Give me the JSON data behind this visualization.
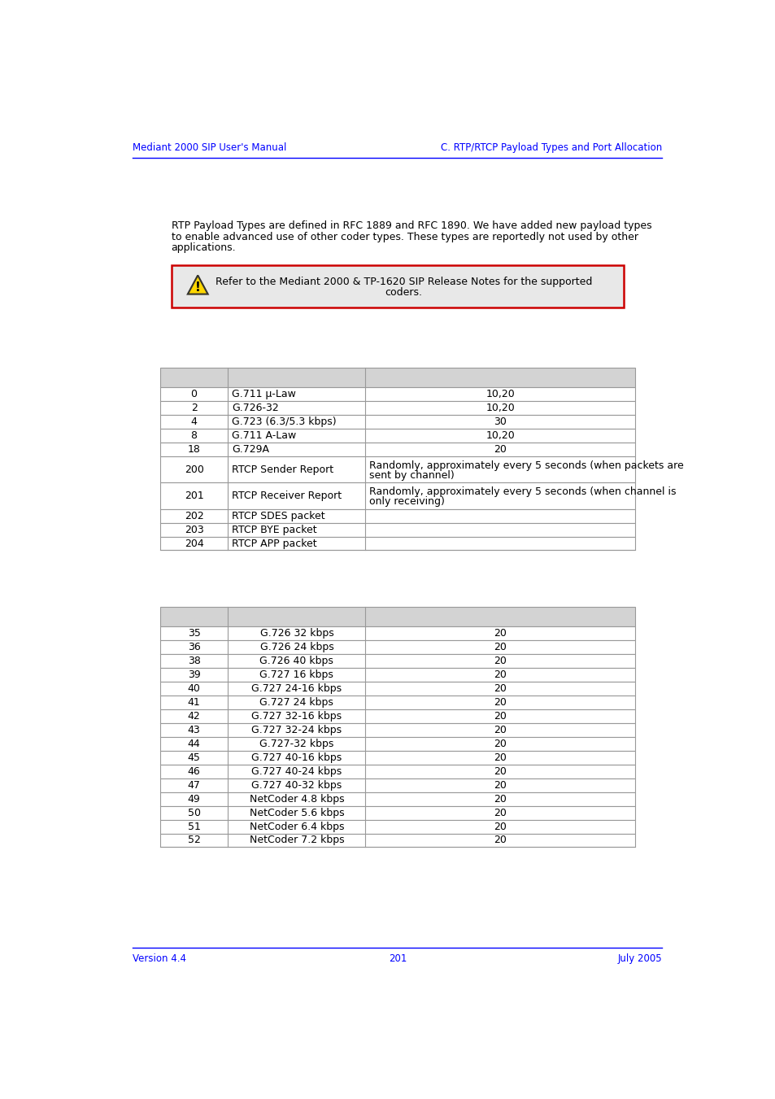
{
  "header_left": "Mediant 2000 SIP User's Manual",
  "header_right": "C. RTP/RTCP Payload Types and Port Allocation",
  "header_color": "#0000FF",
  "body_text_lines": [
    "RTP Payload Types are defined in RFC 1889 and RFC 1890. We have added new payload types",
    "to enable advanced use of other coder types. These types are reportedly not used by other",
    "applications."
  ],
  "warning_line1": "Refer to the Mediant 2000 & TP-1620 SIP Release Notes for the supported",
  "warning_line2": "coders.",
  "table1_header_bg": "#d3d3d3",
  "table_border_color": "#999999",
  "table1_rows": [
    [
      "0",
      "G.711 μ-Law",
      "10,20"
    ],
    [
      "2",
      "G.726-32",
      "10,20"
    ],
    [
      "4",
      "G.723 (6.3/5.3 kbps)",
      "30"
    ],
    [
      "8",
      "G.711 A-Law",
      "10,20"
    ],
    [
      "18",
      "G.729A",
      "20"
    ],
    [
      "200",
      "RTCP Sender Report",
      "Randomly, approximately every 5 seconds (when packets are\nsent by channel)"
    ],
    [
      "201",
      "RTCP Receiver Report",
      "Randomly, approximately every 5 seconds (when channel is\nonly receiving)"
    ],
    [
      "202",
      "RTCP SDES packet",
      ""
    ],
    [
      "203",
      "RTCP BYE packet",
      ""
    ],
    [
      "204",
      "RTCP APP packet",
      ""
    ]
  ],
  "table2_rows": [
    [
      "35",
      "G.726 32 kbps",
      "20"
    ],
    [
      "36",
      "G.726 24 kbps",
      "20"
    ],
    [
      "38",
      "G.726 40 kbps",
      "20"
    ],
    [
      "39",
      "G.727 16 kbps",
      "20"
    ],
    [
      "40",
      "G.727 24-16 kbps",
      "20"
    ],
    [
      "41",
      "G.727 24 kbps",
      "20"
    ],
    [
      "42",
      "G.727 32-16 kbps",
      "20"
    ],
    [
      "43",
      "G.727 32-24 kbps",
      "20"
    ],
    [
      "44",
      "G.727-32 kbps",
      "20"
    ],
    [
      "45",
      "G.727 40-16 kbps",
      "20"
    ],
    [
      "46",
      "G.727 40-24 kbps",
      "20"
    ],
    [
      "47",
      "G.727 40-32 kbps",
      "20"
    ],
    [
      "49",
      "NetCoder 4.8 kbps",
      "20"
    ],
    [
      "50",
      "NetCoder 5.6 kbps",
      "20"
    ],
    [
      "51",
      "NetCoder 6.4 kbps",
      "20"
    ],
    [
      "52",
      "NetCoder 7.2 kbps",
      "20"
    ]
  ],
  "footer_left": "Version 4.4",
  "footer_center": "201",
  "footer_right": "July 2005",
  "footer_color": "#0000FF",
  "bg_color": "#FFFFFF",
  "text_color": "#000000",
  "warning_border": "#CC0000",
  "warning_bg": "#E8E8E8"
}
